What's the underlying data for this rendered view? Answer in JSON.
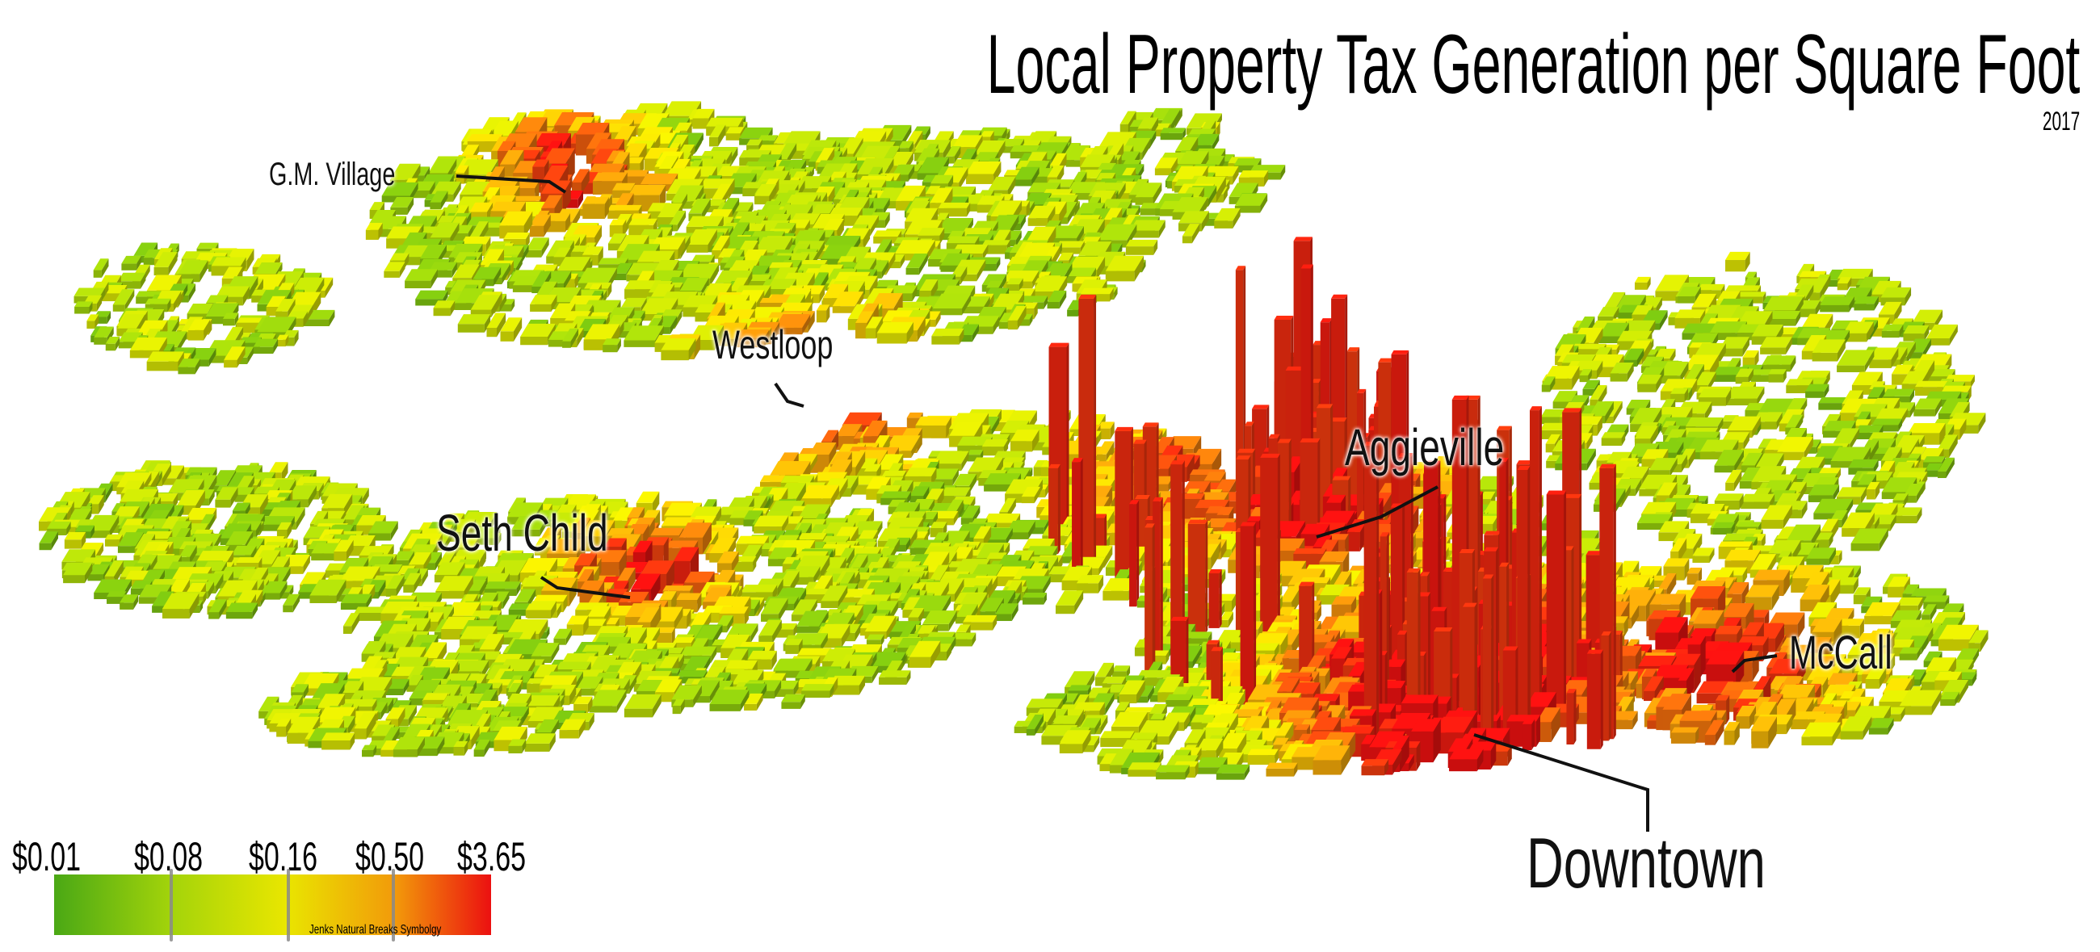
{
  "title": "Local Property Tax Generation per Square Foot",
  "year": "2017",
  "places": {
    "gm_village": "G.M. Village",
    "westloop": "Westloop",
    "seth_child": "Seth Child",
    "aggieville": "Aggieville",
    "mccall": "McCall",
    "downtown": "Downtown"
  },
  "legend": {
    "breaks": [
      "$0.01",
      "$0.08",
      "$0.16",
      "$0.50",
      "$3.65"
    ],
    "note": "Jenks Natural Breaks Symbolgy",
    "colors": [
      "#4aa815",
      "#a4d40a",
      "#e9e600",
      "#f29a0a",
      "#ec1010"
    ]
  }
}
